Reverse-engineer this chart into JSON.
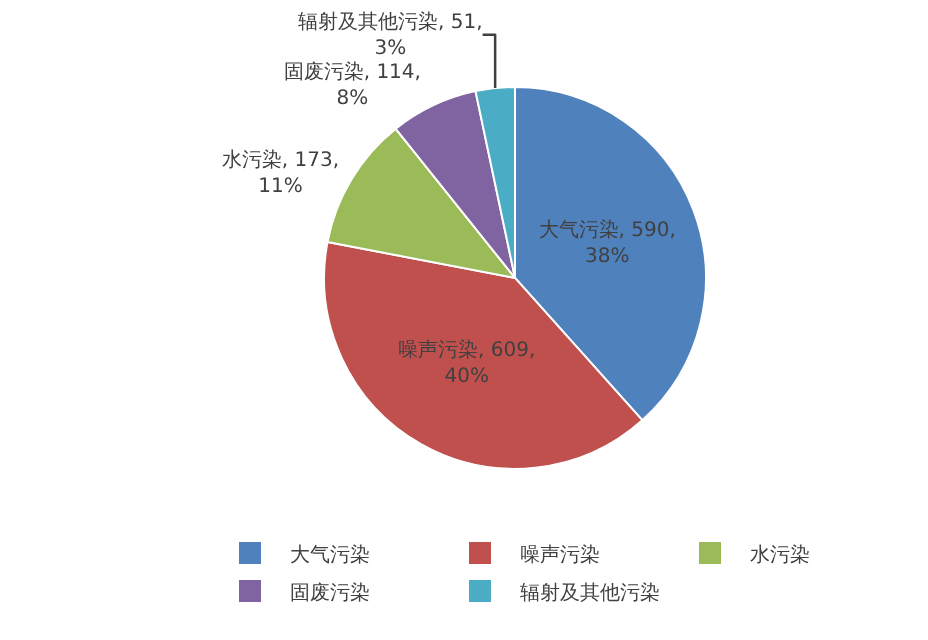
{
  "chart_data": {
    "type": "pie",
    "categories": [
      "大气污染",
      "噪声污染",
      "水污染",
      "固废污染",
      "辐射及其他污染"
    ],
    "values": [
      590,
      609,
      173,
      114,
      51
    ],
    "value_labels": [
      "大气污染, 590, 38%",
      "噪声污染, 609, 40%",
      "水污染, 173, 11%",
      "固废污染, 114, 8%",
      "辐射及其他污染, 51, 3%"
    ],
    "colors": [
      "#4f81bd",
      "#c0504d",
      "#9bbb59",
      "#8064a2",
      "#4bacc6"
    ],
    "legend": "bottom"
  }
}
